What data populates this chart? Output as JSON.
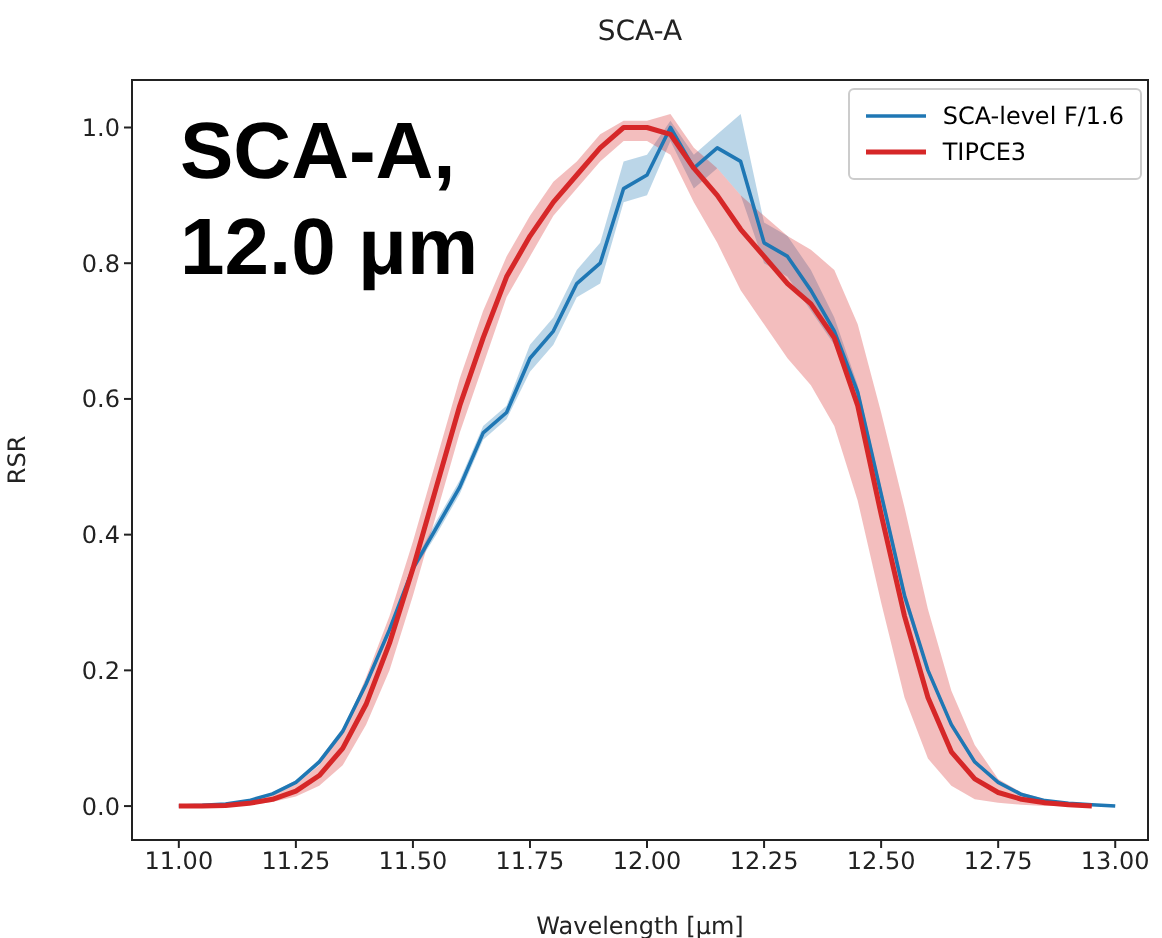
{
  "chart_data": {
    "type": "line",
    "title": "SCA-A",
    "xlabel": "Wavelength [μm]",
    "ylabel": "RSR",
    "annotations": [
      "SCA-A, 12.0 μm"
    ],
    "xlim": [
      10.9,
      13.07
    ],
    "ylim": [
      -0.05,
      1.07
    ],
    "xticks": [
      {
        "value": 11,
        "label": "11.00"
      },
      {
        "value": 11.25,
        "label": "11.25"
      },
      {
        "value": 11.5,
        "label": "11.50"
      },
      {
        "value": 11.75,
        "label": "11.75"
      },
      {
        "value": 12,
        "label": "12.00"
      },
      {
        "value": 12.25,
        "label": "12.25"
      },
      {
        "value": 12.5,
        "label": "12.50"
      },
      {
        "value": 12.75,
        "label": "12.75"
      },
      {
        "value": 13,
        "label": "13.00"
      }
    ],
    "yticks": [
      {
        "value": 0,
        "label": "0.0"
      },
      {
        "value": 0.2,
        "label": "0.2"
      },
      {
        "value": 0.4,
        "label": "0.4"
      },
      {
        "value": 0.6,
        "label": "0.6"
      },
      {
        "value": 0.8,
        "label": "0.8"
      },
      {
        "value": 1,
        "label": "1.0"
      }
    ],
    "grid": false,
    "legend": "top right",
    "marker": "none",
    "line_style": "solid",
    "series": [
      {
        "name": "SCA-level F/1.6",
        "color": "#1f77b4",
        "x": [
          11,
          11.05,
          11.1,
          11.15,
          11.2,
          11.25,
          11.3,
          11.35,
          11.4,
          11.45,
          11.5,
          11.55,
          11.6,
          11.65,
          11.7,
          11.75,
          11.8,
          11.85,
          11.9,
          11.95,
          12,
          12.05,
          12.1,
          12.15,
          12.2,
          12.25,
          12.3,
          12.35,
          12.4,
          12.45,
          12.5,
          12.55,
          12.6,
          12.65,
          12.7,
          12.75,
          12.8,
          12.85,
          12.9,
          12.95,
          13
        ],
        "values": [
          0,
          0.001,
          0.003,
          0.008,
          0.018,
          0.035,
          0.065,
          0.11,
          0.18,
          0.26,
          0.35,
          0.41,
          0.47,
          0.55,
          0.58,
          0.66,
          0.7,
          0.77,
          0.8,
          0.91,
          0.93,
          1.0,
          0.94,
          0.97,
          0.95,
          0.83,
          0.81,
          0.76,
          0.7,
          0.61,
          0.46,
          0.31,
          0.2,
          0.12,
          0.065,
          0.035,
          0.017,
          0.008,
          0.004,
          0.002,
          0
        ],
        "lower": [
          0,
          0.001,
          0.003,
          0.007,
          0.016,
          0.032,
          0.061,
          0.105,
          0.175,
          0.255,
          0.345,
          0.4,
          0.46,
          0.54,
          0.57,
          0.64,
          0.68,
          0.75,
          0.77,
          0.89,
          0.9,
          0.98,
          0.91,
          0.94,
          0.9,
          0.8,
          0.78,
          0.73,
          0.68,
          0.6,
          0.45,
          0.3,
          0.195,
          0.115,
          0.062,
          0.033,
          0.016,
          0.007,
          0.003,
          0.001,
          0
        ],
        "upper": [
          0,
          0.002,
          0.004,
          0.009,
          0.02,
          0.038,
          0.069,
          0.115,
          0.185,
          0.265,
          0.355,
          0.42,
          0.48,
          0.56,
          0.59,
          0.68,
          0.72,
          0.79,
          0.83,
          0.95,
          0.96,
          1.01,
          0.96,
          0.99,
          1.02,
          0.86,
          0.84,
          0.79,
          0.72,
          0.62,
          0.47,
          0.32,
          0.205,
          0.125,
          0.068,
          0.037,
          0.018,
          0.009,
          0.005,
          0.003,
          0.001
        ]
      },
      {
        "name": "TIPCE3",
        "color": "#d62728",
        "x": [
          11,
          11.05,
          11.1,
          11.15,
          11.2,
          11.25,
          11.3,
          11.35,
          11.4,
          11.45,
          11.5,
          11.55,
          11.6,
          11.65,
          11.7,
          11.75,
          11.8,
          11.85,
          11.9,
          11.95,
          12,
          12.05,
          12.1,
          12.15,
          12.2,
          12.25,
          12.3,
          12.35,
          12.4,
          12.45,
          12.5,
          12.55,
          12.6,
          12.65,
          12.7,
          12.75,
          12.8,
          12.85,
          12.9,
          12.95
        ],
        "values": [
          0,
          0,
          0.001,
          0.004,
          0.01,
          0.022,
          0.045,
          0.085,
          0.15,
          0.24,
          0.35,
          0.47,
          0.59,
          0.69,
          0.78,
          0.84,
          0.89,
          0.93,
          0.97,
          1.0,
          1.0,
          0.99,
          0.94,
          0.9,
          0.85,
          0.81,
          0.77,
          0.74,
          0.69,
          0.59,
          0.43,
          0.28,
          0.16,
          0.08,
          0.04,
          0.02,
          0.01,
          0.005,
          0.002,
          0
        ],
        "lower": [
          0,
          0,
          0,
          0.002,
          0.006,
          0.014,
          0.03,
          0.06,
          0.12,
          0.2,
          0.31,
          0.43,
          0.55,
          0.65,
          0.75,
          0.81,
          0.87,
          0.91,
          0.95,
          0.98,
          0.98,
          0.96,
          0.89,
          0.83,
          0.76,
          0.71,
          0.66,
          0.62,
          0.56,
          0.45,
          0.3,
          0.16,
          0.07,
          0.03,
          0.01,
          0.005,
          0.002,
          0,
          0,
          0
        ],
        "upper": [
          0,
          0.001,
          0.003,
          0.007,
          0.016,
          0.032,
          0.06,
          0.11,
          0.19,
          0.28,
          0.39,
          0.51,
          0.63,
          0.73,
          0.81,
          0.87,
          0.92,
          0.95,
          0.99,
          1.01,
          1.01,
          1.02,
          0.97,
          0.94,
          0.9,
          0.87,
          0.84,
          0.82,
          0.79,
          0.71,
          0.58,
          0.44,
          0.29,
          0.17,
          0.09,
          0.04,
          0.02,
          0.01,
          0.004,
          0.001
        ]
      }
    ]
  }
}
